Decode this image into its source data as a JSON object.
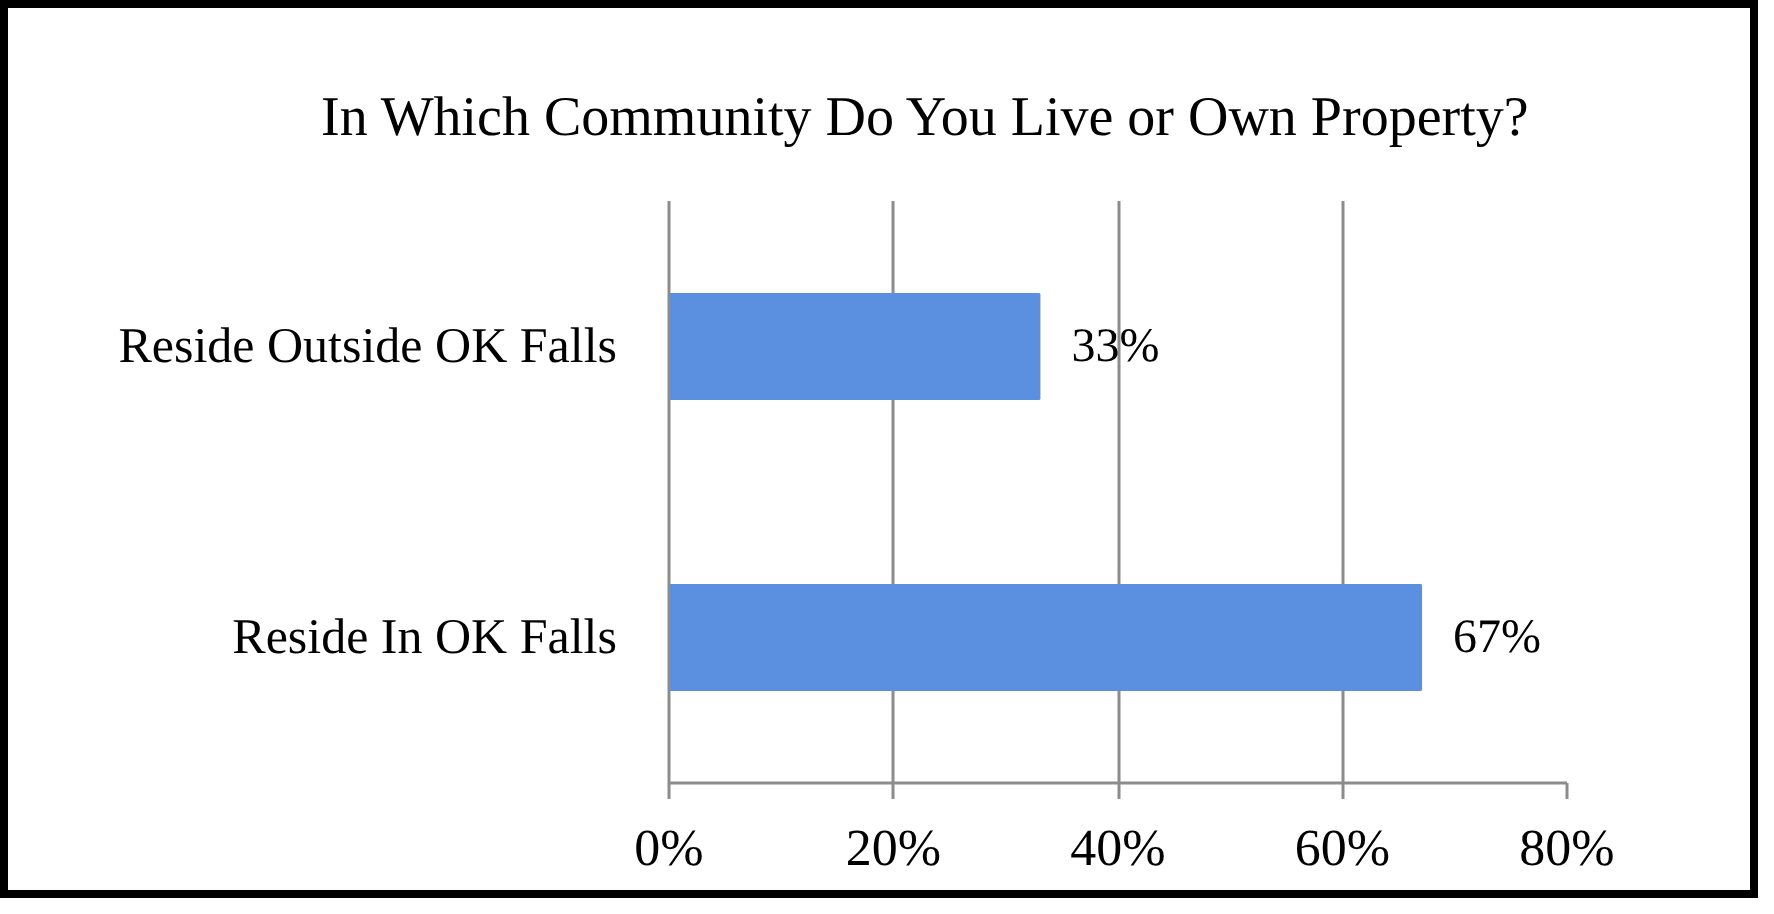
{
  "chart_data": {
    "type": "bar",
    "orientation": "horizontal",
    "title": "In Which Community Do You Live or Own Property?",
    "categories": [
      "Reside Outside OK Falls",
      "Reside In OK Falls"
    ],
    "values": [
      33,
      67
    ],
    "value_labels": [
      "33%",
      "67%"
    ],
    "color": "#5b8fe0",
    "xlim": [
      0,
      80
    ],
    "xticks": [
      {
        "value": 0,
        "label": "0%"
      },
      {
        "value": 20,
        "label": "20%"
      },
      {
        "value": 40,
        "label": "40%"
      },
      {
        "value": 60,
        "label": "60%"
      },
      {
        "value": 80,
        "label": "80%"
      }
    ],
    "grid": "x"
  }
}
